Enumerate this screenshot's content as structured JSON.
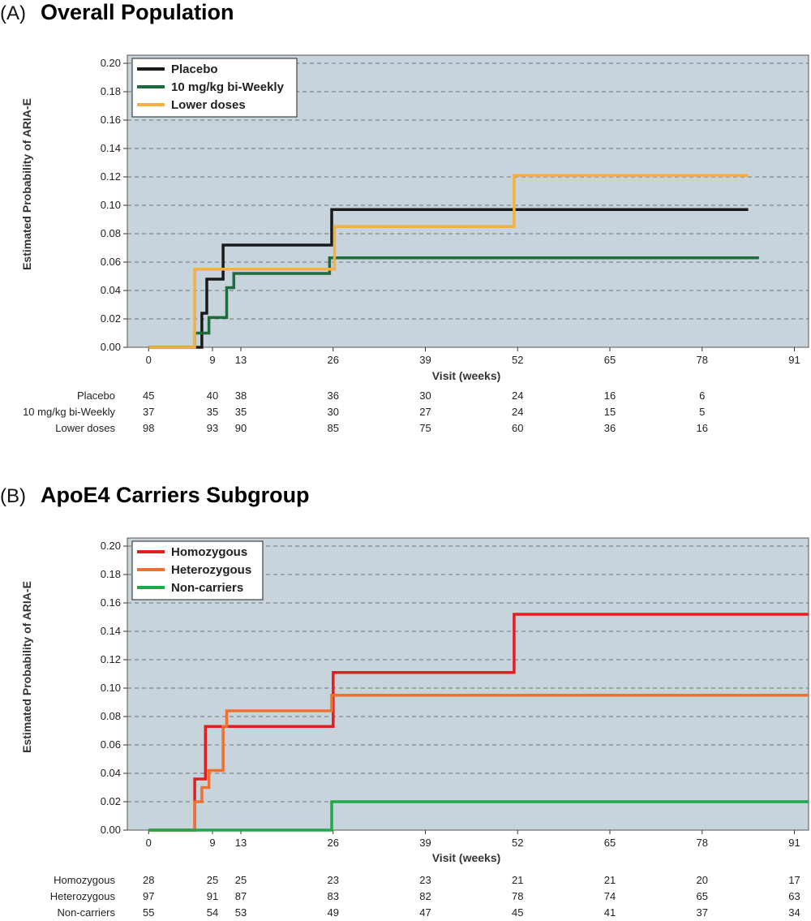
{
  "chart_data": [
    {
      "type": "line",
      "panel": "(A)",
      "title": "Overall Population",
      "xlabel": "Visit (weeks)",
      "ylabel": "Estimated Probability of ARIA-E",
      "xlim": [
        -3,
        93
      ],
      "ylim": [
        0,
        0.2
      ],
      "xticks": [
        0,
        9,
        13,
        26,
        39,
        52,
        65,
        78,
        91
      ],
      "yticks": [
        0.0,
        0.02,
        0.04,
        0.06,
        0.08,
        0.1,
        0.12,
        0.14,
        0.16,
        0.18,
        0.2
      ],
      "grid": "horizontal dashed",
      "legend_position": "top-left",
      "background": "#c7d4dc",
      "series": [
        {
          "name": "Placebo",
          "color": "#1a1a1a",
          "x": [
            0,
            7.5,
            7.5,
            8.2,
            8.2,
            10.5,
            10.5,
            25.8,
            25.8,
            84.5
          ],
          "y": [
            0,
            0,
            0.024,
            0.024,
            0.048,
            0.048,
            0.072,
            0.072,
            0.097,
            0.097
          ]
        },
        {
          "name": "10 mg/kg bi-Weekly",
          "color": "#1e6b3c",
          "x": [
            0,
            6.5,
            6.5,
            8.5,
            8.5,
            11,
            11,
            12,
            12,
            25.5,
            25.5,
            86
          ],
          "y": [
            0,
            0,
            0.01,
            0.01,
            0.021,
            0.021,
            0.042,
            0.042,
            0.052,
            0.052,
            0.063,
            0.063
          ]
        },
        {
          "name": "Lower doses",
          "color": "#f5b041",
          "x": [
            0,
            6.5,
            6.5,
            26.2,
            26.2,
            51.5,
            51.5,
            84.5
          ],
          "y": [
            0,
            0,
            0.055,
            0.055,
            0.085,
            0.085,
            0.121,
            0.121
          ]
        }
      ],
      "risk_table": {
        "times": [
          0,
          9,
          13,
          26,
          39,
          52,
          65,
          78
        ],
        "rows": [
          {
            "label": "Placebo",
            "values": [
              "45",
              "40",
              "38",
              "36",
              "30",
              "24",
              "16",
              "6"
            ]
          },
          {
            "label": "10 mg/kg bi-Weekly",
            "values": [
              "37",
              "35",
              "35",
              "30",
              "27",
              "24",
              "15",
              "5"
            ]
          },
          {
            "label": "Lower doses",
            "values": [
              "98",
              "93",
              "90",
              "85",
              "75",
              "60",
              "36",
              "16"
            ]
          }
        ]
      }
    },
    {
      "type": "line",
      "panel": "(B)",
      "title": "ApoE4 Carriers Subgroup",
      "xlabel": "Visit (weeks)",
      "ylabel": "Estimated Probability of ARIA-E",
      "xlim": [
        -3,
        93
      ],
      "ylim": [
        0,
        0.2
      ],
      "xticks": [
        0,
        9,
        13,
        26,
        39,
        52,
        65,
        78,
        91
      ],
      "yticks": [
        0.0,
        0.02,
        0.04,
        0.06,
        0.08,
        0.1,
        0.12,
        0.14,
        0.16,
        0.18,
        0.2
      ],
      "grid": "horizontal dashed",
      "legend_position": "top-left",
      "background": "#c7d4dc",
      "series": [
        {
          "name": "Homozygous",
          "color": "#e02020",
          "x": [
            0,
            6.5,
            6.5,
            8,
            8,
            26,
            26,
            51.5,
            51.5,
            93
          ],
          "y": [
            0,
            0,
            0.036,
            0.036,
            0.073,
            0.073,
            0.111,
            0.111,
            0.152,
            0.152
          ]
        },
        {
          "name": "Heterozygous",
          "color": "#f07030",
          "x": [
            0,
            6.5,
            6.5,
            7.5,
            7.5,
            8.5,
            8.5,
            10.5,
            10.5,
            11,
            11,
            25.8,
            25.8,
            93
          ],
          "y": [
            0,
            0,
            0.02,
            0.02,
            0.03,
            0.03,
            0.042,
            0.042,
            0.073,
            0.073,
            0.084,
            0.084,
            0.095,
            0.095
          ]
        },
        {
          "name": "Non-carriers",
          "color": "#1ea84a",
          "x": [
            0,
            25.8,
            25.8,
            93
          ],
          "y": [
            0,
            0,
            0.02,
            0.02
          ]
        }
      ],
      "risk_table": {
        "times": [
          0,
          9,
          13,
          26,
          39,
          52,
          65,
          78,
          91
        ],
        "rows": [
          {
            "label": "Homozygous",
            "values": [
              "28",
              "25",
              "25",
              "23",
              "23",
              "21",
              "21",
              "20",
              "17"
            ]
          },
          {
            "label": "Heterozygous",
            "values": [
              "97",
              "91",
              "87",
              "83",
              "82",
              "78",
              "74",
              "65",
              "63"
            ]
          },
          {
            "label": "Non-carriers",
            "values": [
              "55",
              "54",
              "53",
              "49",
              "47",
              "45",
              "41",
              "37",
              "34"
            ]
          }
        ]
      }
    }
  ]
}
